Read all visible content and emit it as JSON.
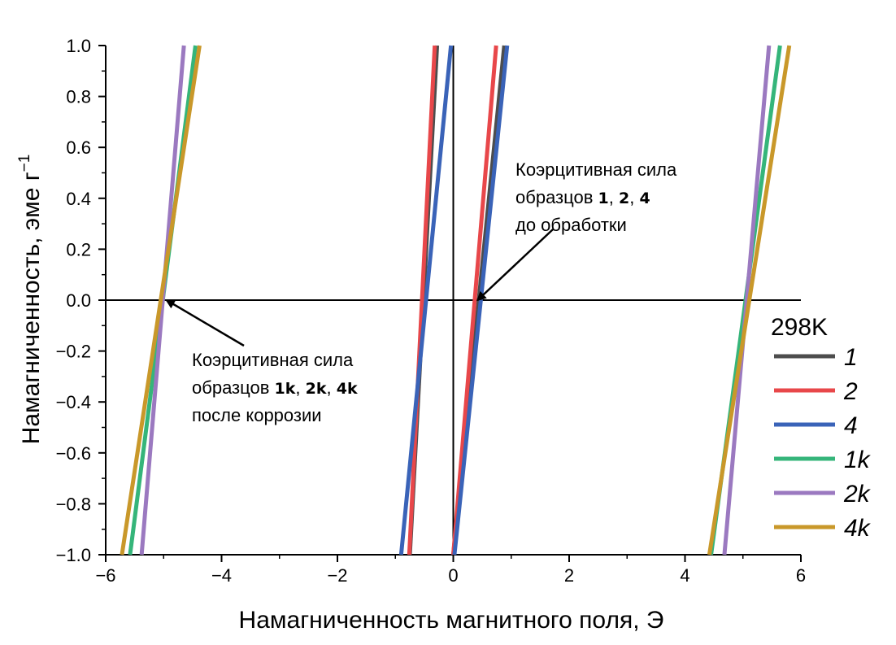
{
  "chart_data": {
    "type": "line",
    "xlabel": "Намагниченность магнитного поля, Э",
    "ylabel": "Намагниченность, эме г",
    "ylabel_superscript": "−1",
    "xlim": [
      -6,
      6
    ],
    "ylim": [
      -1.0,
      1.0
    ],
    "x_ticks": [
      "−6",
      "−4",
      "−2",
      "0",
      "2",
      "4",
      "6"
    ],
    "y_ticks": [
      "1.0",
      "0.8",
      "0.6",
      "0.4",
      "0.2",
      "0.0",
      "−0.2",
      "−0.4",
      "−0.6",
      "−0.8",
      "−1.0"
    ],
    "grid": false,
    "legend_position": "right",
    "legend_title": "298K",
    "colors": {
      "s1": "#4d4d4d",
      "s2": "#e8474a",
      "s4": "#3a63b8",
      "s1k": "#35b57a",
      "s2k": "#9b79c0",
      "s4k": "#c9982a"
    },
    "series": [
      {
        "name": "1",
        "color_key": "s1",
        "segments": [
          [
            [
              -0.75,
              -1.0
            ],
            [
              -0.28,
              1.0
            ]
          ],
          [
            [
              0.0,
              -1.0
            ],
            [
              0.88,
              1.0
            ]
          ]
        ]
      },
      {
        "name": "2",
        "color_key": "s2",
        "segments": [
          [
            [
              -0.76,
              -1.0
            ],
            [
              -0.32,
              1.0
            ]
          ],
          [
            [
              0.0,
              -1.0
            ],
            [
              0.74,
              1.0
            ]
          ]
        ]
      },
      {
        "name": "4",
        "color_key": "s4",
        "segments": [
          [
            [
              -0.9,
              -1.0
            ],
            [
              -0.04,
              1.0
            ]
          ],
          [
            [
              0.02,
              -1.0
            ],
            [
              0.93,
              1.0
            ]
          ]
        ]
      },
      {
        "name": "1k",
        "color_key": "s1k",
        "segments": [
          [
            [
              -5.58,
              -1.0
            ],
            [
              -4.45,
              1.0
            ]
          ],
          [
            [
              4.45,
              -1.0
            ],
            [
              5.64,
              1.0
            ]
          ]
        ]
      },
      {
        "name": "2k",
        "color_key": "s2k",
        "segments": [
          [
            [
              -5.38,
              -1.0
            ],
            [
              -4.65,
              1.0
            ]
          ],
          [
            [
              4.68,
              -1.0
            ],
            [
              5.45,
              1.0
            ]
          ]
        ]
      },
      {
        "name": "4k",
        "color_key": "s4k",
        "segments": [
          [
            [
              -5.72,
              -1.0
            ],
            [
              -4.38,
              1.0
            ]
          ],
          [
            [
              4.42,
              -1.0
            ],
            [
              5.8,
              1.0
            ]
          ]
        ]
      }
    ],
    "annotations": [
      {
        "key": "before",
        "lines": [
          {
            "parts": [
              {
                "t": "Коэрцитивная сила",
                "b": false
              }
            ]
          },
          {
            "parts": [
              {
                "t": "образцов ",
                "b": false
              },
              {
                "t": "1",
                "b": true
              },
              {
                "t": ", ",
                "b": false
              },
              {
                "t": "2",
                "b": true
              },
              {
                "t": ", ",
                "b": false
              },
              {
                "t": "4",
                "b": true
              }
            ]
          },
          {
            "parts": [
              {
                "t": "до обработки",
                "b": false
              }
            ]
          }
        ],
        "arrow_to": [
          0.42,
          0.0
        ]
      },
      {
        "key": "after",
        "lines": [
          {
            "parts": [
              {
                "t": "Коэрцитивная сила",
                "b": false
              }
            ]
          },
          {
            "parts": [
              {
                "t": "образцов ",
                "b": false
              },
              {
                "t": "1k",
                "b": true
              },
              {
                "t": ", ",
                "b": false
              },
              {
                "t": "2k",
                "b": true
              },
              {
                "t": ", ",
                "b": false
              },
              {
                "t": "4k",
                "b": true
              }
            ]
          },
          {
            "parts": [
              {
                "t": "после коррозии",
                "b": false
              }
            ]
          }
        ],
        "arrow_to": [
          -4.95,
          0.0
        ]
      }
    ]
  }
}
